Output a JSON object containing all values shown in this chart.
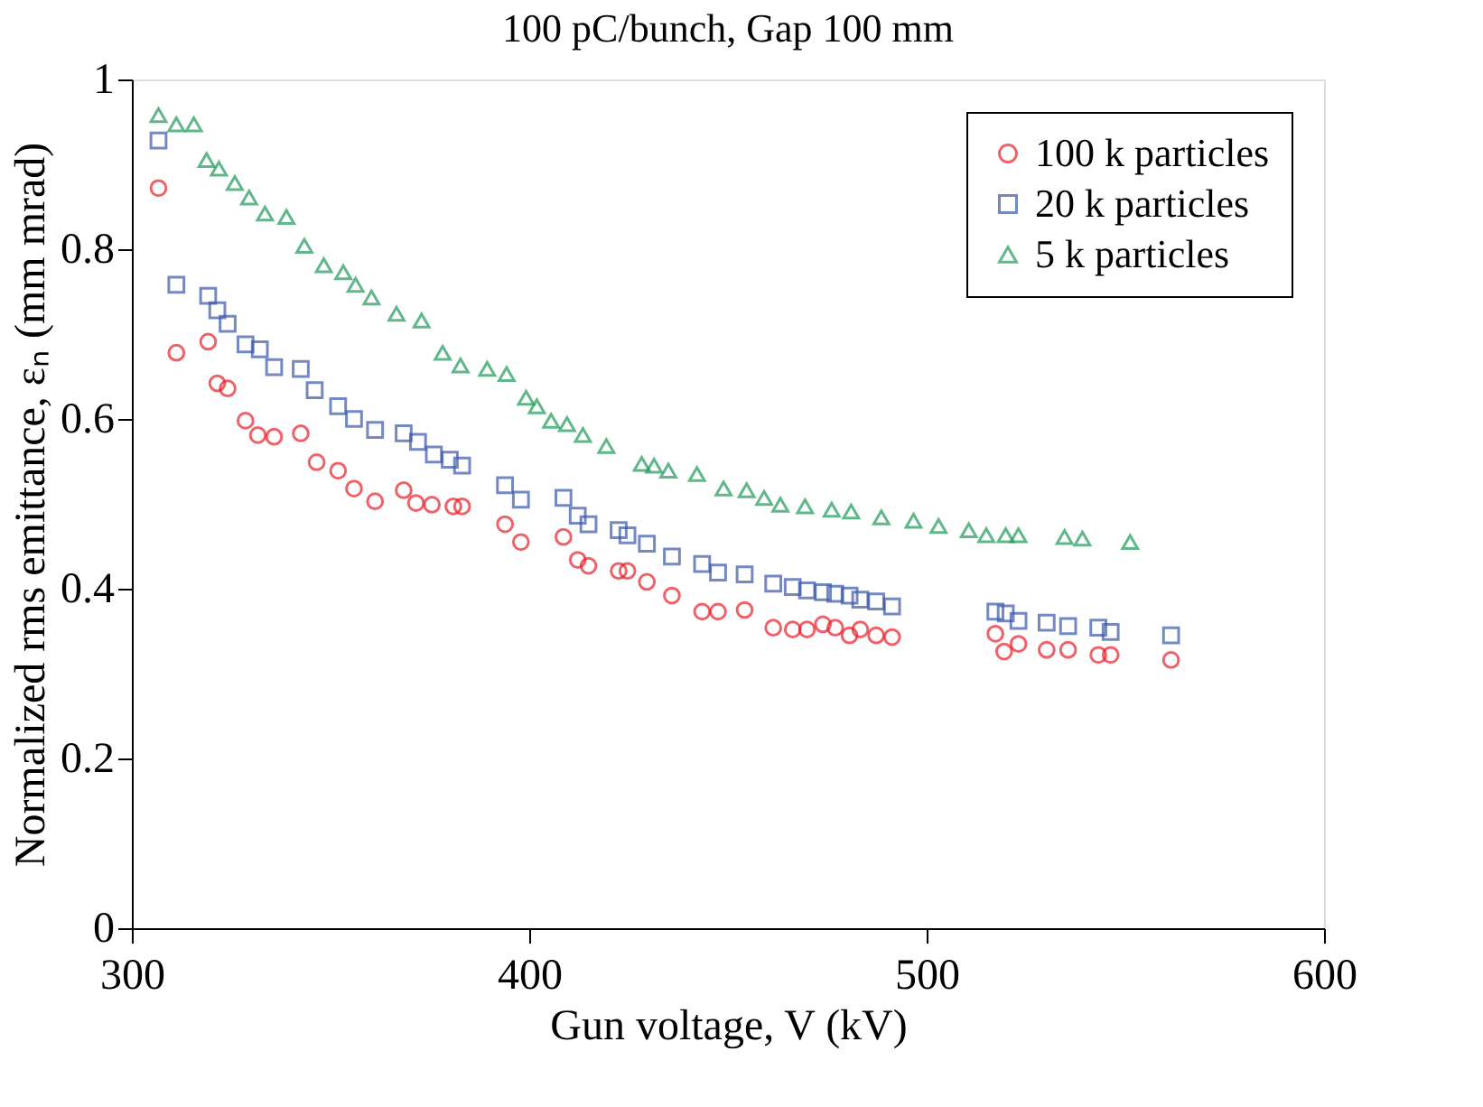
{
  "chart_data": {
    "type": "scatter",
    "title": "100 pC/bunch, Gap 100 mm",
    "xlabel": "Gun voltage, V (kV)",
    "ylabel": "Normalized rms emittance, εₙ (mm mrad)",
    "xlim": [
      300,
      600
    ],
    "xticks": [
      300,
      400,
      500,
      600
    ],
    "ylim": [
      0,
      1
    ],
    "yticks": [
      0,
      0.2,
      0.4,
      0.6,
      0.8,
      1
    ],
    "legend": "top right",
    "series": [
      {
        "name": "100 k particles",
        "color": "#e8202a",
        "marker": "circle",
        "x": [
          306.7,
          311.2,
          319.2,
          321.5,
          324.1,
          328.6,
          331.7,
          335.8,
          342.5,
          346.5,
          351.9,
          355.9,
          361.2,
          368.4,
          371.5,
          375.5,
          380.9,
          383.1,
          393.9,
          397.9,
          408.6,
          412.2,
          414.9,
          422.5,
          424.7,
          429.6,
          435.9,
          443.5,
          447.5,
          454.2,
          461.4,
          466.3,
          469.9,
          473.9,
          477.0,
          480.6,
          483.3,
          487.3,
          491.3,
          517.3,
          519.5,
          523.1,
          530.2,
          535.6,
          543.2,
          546.3,
          561.5
        ],
        "values": [
          0.872,
          0.678,
          0.691,
          0.642,
          0.636,
          0.598,
          0.581,
          0.579,
          0.583,
          0.549,
          0.539,
          0.518,
          0.503,
          0.516,
          0.501,
          0.499,
          0.497,
          0.497,
          0.476,
          0.455,
          0.461,
          0.434,
          0.427,
          0.421,
          0.421,
          0.408,
          0.392,
          0.373,
          0.373,
          0.375,
          0.354,
          0.352,
          0.352,
          0.358,
          0.354,
          0.345,
          0.352,
          0.345,
          0.343,
          0.347,
          0.326,
          0.335,
          0.328,
          0.328,
          0.322,
          0.322,
          0.316
        ]
      },
      {
        "name": "20 k particles",
        "color": "#3a57a8",
        "marker": "square",
        "x": [
          306.7,
          311.2,
          319.2,
          321.5,
          324.1,
          328.6,
          332.2,
          335.8,
          342.5,
          346.0,
          351.9,
          355.9,
          361.2,
          368.4,
          372.0,
          376.0,
          380.0,
          383.1,
          393.9,
          397.9,
          408.6,
          412.2,
          414.9,
          422.5,
          424.7,
          429.6,
          435.9,
          443.5,
          447.5,
          454.2,
          461.4,
          466.3,
          469.9,
          473.9,
          477.0,
          480.6,
          483.3,
          487.3,
          491.3,
          517.3,
          519.9,
          523.1,
          530.2,
          535.6,
          543.2,
          546.3,
          561.5
        ],
        "values": [
          0.928,
          0.758,
          0.745,
          0.728,
          0.712,
          0.688,
          0.682,
          0.661,
          0.659,
          0.634,
          0.615,
          0.6,
          0.587,
          0.583,
          0.573,
          0.558,
          0.552,
          0.545,
          0.522,
          0.505,
          0.507,
          0.486,
          0.476,
          0.469,
          0.463,
          0.453,
          0.438,
          0.429,
          0.419,
          0.417,
          0.406,
          0.402,
          0.398,
          0.396,
          0.394,
          0.392,
          0.387,
          0.385,
          0.379,
          0.373,
          0.371,
          0.362,
          0.36,
          0.356,
          0.354,
          0.349,
          0.345
        ]
      },
      {
        "name": "5 k particles",
        "color": "#1e9a5a",
        "marker": "triangle",
        "x": [
          306.7,
          311.2,
          315.6,
          318.8,
          321.9,
          325.9,
          329.5,
          333.5,
          338.9,
          343.4,
          348.3,
          353.2,
          356.3,
          360.3,
          366.6,
          372.9,
          378.2,
          382.7,
          389.4,
          394.3,
          399.2,
          401.9,
          405.5,
          409.5,
          413.5,
          419.4,
          428.3,
          431.4,
          435.0,
          442.2,
          448.9,
          454.7,
          459.1,
          463.2,
          469.4,
          476.1,
          481.0,
          488.6,
          496.7,
          503.0,
          510.6,
          515.0,
          519.9,
          523.1,
          534.7,
          539.2,
          551.2
        ],
        "values": [
          0.958,
          0.947,
          0.947,
          0.905,
          0.895,
          0.878,
          0.861,
          0.842,
          0.838,
          0.804,
          0.781,
          0.773,
          0.758,
          0.743,
          0.724,
          0.716,
          0.678,
          0.663,
          0.659,
          0.653,
          0.625,
          0.615,
          0.598,
          0.594,
          0.581,
          0.568,
          0.547,
          0.545,
          0.539,
          0.535,
          0.518,
          0.516,
          0.507,
          0.499,
          0.497,
          0.493,
          0.491,
          0.484,
          0.48,
          0.474,
          0.469,
          0.463,
          0.463,
          0.463,
          0.461,
          0.459,
          0.455
        ]
      }
    ]
  }
}
